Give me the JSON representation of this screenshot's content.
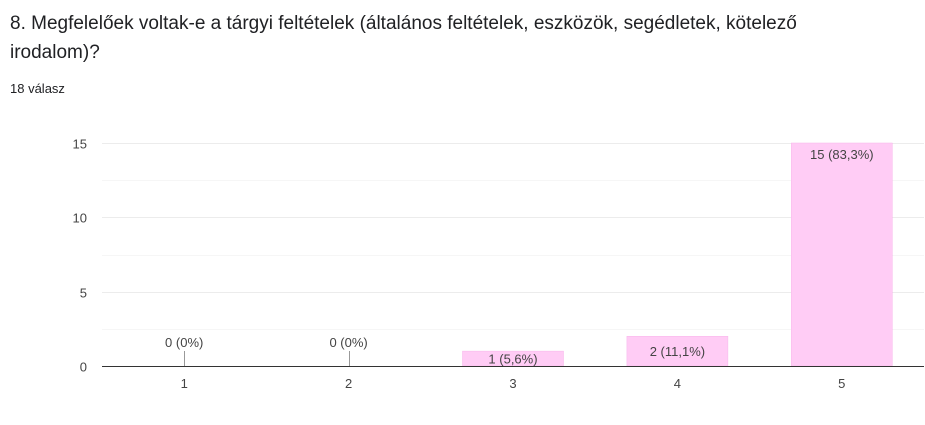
{
  "question": {
    "title": "8. Megfelelőek voltak-e a tárgyi feltételek (általános feltételek, eszközök, segédletek, kötelező irodalom)?",
    "response_count": "18 válasz"
  },
  "colors": {
    "bar": "#ffccf5",
    "bar_stroke": "#f8b4eb",
    "grid": "#ececec",
    "grid_minor": "#f6f6f6",
    "axis": "#333333",
    "label": "#444444"
  },
  "chart_data": {
    "type": "bar",
    "categories": [
      "1",
      "2",
      "3",
      "4",
      "5"
    ],
    "values": [
      0,
      0,
      1,
      2,
      15
    ],
    "data_labels": [
      "0 (0%)",
      "0 (0%)",
      "1 (5,6%)",
      "2 (11,1%)",
      "15 (83,3%)"
    ],
    "yticks": [
      "0",
      "5",
      "10",
      "15"
    ],
    "ylim": [
      0,
      15
    ],
    "grid": true,
    "legend": "none"
  }
}
